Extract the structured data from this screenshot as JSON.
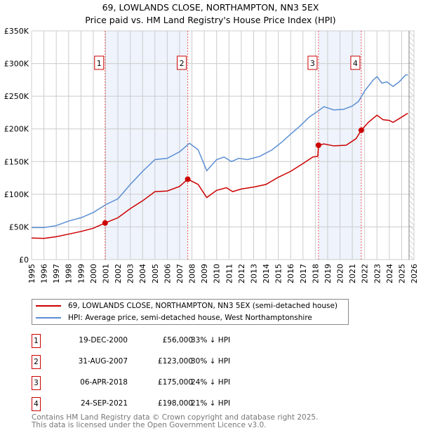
{
  "title": "69, LOWLANDS CLOSE, NORTHAMPTON, NN3 5EX",
  "subtitle": "Price paid vs. HM Land Registry's House Price Index (HPI)",
  "chart_data": {
    "type": "line",
    "xlim": [
      1995,
      2026
    ],
    "ylim": [
      0,
      350000
    ],
    "yticks": [
      0,
      50000,
      100000,
      150000,
      200000,
      250000,
      300000,
      350000
    ],
    "ytick_labels": [
      "£0",
      "£50K",
      "£100K",
      "£150K",
      "£200K",
      "£250K",
      "£300K",
      "£350K"
    ],
    "xtick_labels": [
      "1995",
      "1996",
      "1997",
      "1998",
      "1999",
      "2000",
      "2001",
      "2002",
      "2003",
      "2004",
      "2005",
      "2006",
      "2007",
      "2008",
      "2009",
      "2010",
      "2011",
      "2012",
      "2013",
      "2014",
      "2015",
      "2016",
      "2017",
      "2018",
      "2019",
      "2020",
      "2021",
      "2022",
      "2023",
      "2024",
      "2025",
      "2026"
    ],
    "grid": true,
    "series": [
      {
        "name": "69, LOWLANDS CLOSE, NORTHAMPTON, NN3 5EX (semi-detached house)",
        "color": "#cc0000",
        "x": [
          1995,
          1996,
          1997,
          1998,
          1999,
          2000,
          2000.96,
          2002,
          2003,
          2004,
          2005,
          2006,
          2007,
          2007.66,
          2008.5,
          2009.2,
          2010,
          2010.8,
          2011.3,
          2012,
          2013,
          2014,
          2015,
          2016,
          2017,
          2017.8,
          2018.2,
          2018.26,
          2018.7,
          2019.5,
          2020.5,
          2021.3,
          2021.73,
          2022.3,
          2023,
          2023.5,
          2024,
          2024.3,
          2025,
          2025.5
        ],
        "y": [
          33000,
          32500,
          35000,
          39000,
          43000,
          48000,
          56000,
          64000,
          78000,
          90000,
          104000,
          105000,
          112000,
          123000,
          115000,
          95000,
          106000,
          110000,
          104000,
          108000,
          111000,
          115000,
          126000,
          135000,
          147000,
          157000,
          158000,
          175000,
          177000,
          174000,
          175000,
          185000,
          198000,
          210000,
          221000,
          214000,
          213000,
          210000,
          218000,
          224000
        ]
      },
      {
        "name": "HPI: Average price, semi-detached house, West Northamptonshire",
        "color": "#5b8fd4",
        "x": [
          1995,
          1996,
          1997,
          1998,
          1999,
          2000,
          2001,
          2002,
          2003,
          2004,
          2005,
          2006,
          2007,
          2007.8,
          2008.5,
          2009.2,
          2010,
          2010.6,
          2011.2,
          2011.8,
          2012.5,
          2013.5,
          2014.5,
          2015.3,
          2016,
          2016.8,
          2017.5,
          2018.2,
          2018.7,
          2019.5,
          2020.3,
          2021,
          2021.5,
          2022,
          2022.7,
          2023,
          2023.4,
          2023.8,
          2024.3,
          2024.8,
          2025.3,
          2025.5
        ],
        "y": [
          49000,
          49000,
          52000,
          59000,
          64000,
          72000,
          84000,
          93000,
          115000,
          135000,
          153000,
          155000,
          165000,
          178000,
          168000,
          136000,
          153000,
          157000,
          150000,
          155000,
          153000,
          158000,
          168000,
          180000,
          192000,
          205000,
          218000,
          227000,
          234000,
          229000,
          230000,
          235000,
          242000,
          258000,
          275000,
          280000,
          270000,
          272000,
          265000,
          272000,
          282000,
          283000
        ]
      }
    ],
    "sales": [
      {
        "label": "1",
        "x": 2000.96,
        "y": 56000
      },
      {
        "label": "2",
        "x": 2007.66,
        "y": 123000
      },
      {
        "label": "3",
        "x": 2018.26,
        "y": 175000
      },
      {
        "label": "4",
        "x": 2021.73,
        "y": 198000
      }
    ],
    "shaded_ranges": [
      [
        2000.96,
        2007.66
      ],
      [
        2018.26,
        2021.73
      ]
    ],
    "forecast_hatch_from": 2025.6
  },
  "legend": {
    "items": [
      "69, LOWLANDS CLOSE, NORTHAMPTON, NN3 5EX (semi-detached house)",
      "HPI: Average price, semi-detached house, West Northamptonshire"
    ]
  },
  "table": [
    {
      "num": "1",
      "date": "19-DEC-2000",
      "price": "£56,000",
      "hpi": "33% ↓ HPI"
    },
    {
      "num": "2",
      "date": "31-AUG-2007",
      "price": "£123,000",
      "hpi": "30% ↓ HPI"
    },
    {
      "num": "3",
      "date": "06-APR-2018",
      "price": "£175,000",
      "hpi": "24% ↓ HPI"
    },
    {
      "num": "4",
      "date": "24-SEP-2021",
      "price": "£198,000",
      "hpi": "21% ↓ HPI"
    }
  ],
  "footer": {
    "line1": "Contains HM Land Registry data © Crown copyright and database right 2025.",
    "line2": "This data is licensed under the Open Government Licence v3.0."
  }
}
